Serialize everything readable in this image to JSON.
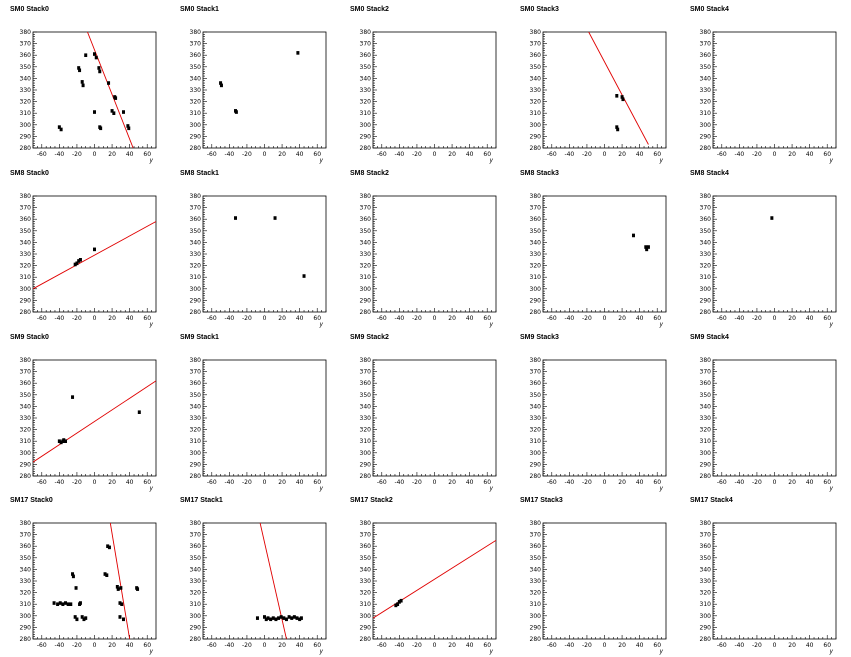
{
  "chart_data": [
    {
      "title": "SM0 Stack0",
      "type": "scatter",
      "xlabel": "y",
      "ylabel": "",
      "xlim": [
        -70,
        70
      ],
      "ylim": [
        280,
        380
      ],
      "xticks": [
        -60,
        -40,
        -20,
        0,
        20,
        40,
        60
      ],
      "yticks": [
        280,
        290,
        300,
        310,
        320,
        330,
        340,
        350,
        360,
        370,
        380
      ],
      "points": [
        [
          -40,
          298
        ],
        [
          -38,
          296
        ],
        [
          -18,
          349
        ],
        [
          -17,
          347
        ],
        [
          -14,
          337
        ],
        [
          -13,
          334
        ],
        [
          -10,
          360
        ],
        [
          0,
          361
        ],
        [
          2,
          358
        ],
        [
          5,
          349
        ],
        [
          6,
          346
        ],
        [
          0,
          311
        ],
        [
          6,
          298
        ],
        [
          7,
          297
        ],
        [
          16,
          336
        ],
        [
          20,
          312
        ],
        [
          22,
          310
        ],
        [
          23,
          324
        ],
        [
          24,
          323
        ],
        [
          33,
          311
        ],
        [
          38,
          299
        ],
        [
          39,
          297
        ]
      ],
      "fit": [
        [
          -8,
          380
        ],
        [
          44,
          280
        ]
      ]
    },
    {
      "title": "SM0 Stack1",
      "type": "scatter",
      "xlabel": "y",
      "ylabel": "",
      "xlim": [
        -70,
        70
      ],
      "ylim": [
        280,
        380
      ],
      "xticks": [
        -60,
        -40,
        -20,
        0,
        20,
        40,
        60
      ],
      "yticks": [
        280,
        290,
        300,
        310,
        320,
        330,
        340,
        350,
        360,
        370,
        380
      ],
      "points": [
        [
          -50,
          336
        ],
        [
          -49,
          334
        ],
        [
          -33,
          312
        ],
        [
          -32,
          311
        ],
        [
          38,
          362
        ]
      ],
      "fit": null
    },
    {
      "title": "SM0 Stack2",
      "type": "scatter",
      "xlabel": "y",
      "ylabel": "",
      "xlim": [
        -70,
        70
      ],
      "ylim": [
        280,
        380
      ],
      "xticks": [
        -60,
        -40,
        -20,
        0,
        20,
        40,
        60
      ],
      "yticks": [
        280,
        290,
        300,
        310,
        320,
        330,
        340,
        350,
        360,
        370,
        380
      ],
      "points": [],
      "fit": null
    },
    {
      "title": "SM0 Stack3",
      "type": "scatter",
      "xlabel": "y",
      "ylabel": "",
      "xlim": [
        -70,
        70
      ],
      "ylim": [
        280,
        380
      ],
      "xticks": [
        -60,
        -40,
        -20,
        0,
        20,
        40,
        60
      ],
      "yticks": [
        280,
        290,
        300,
        310,
        320,
        330,
        340,
        350,
        360,
        370,
        380
      ],
      "points": [
        [
          14,
          325
        ],
        [
          14,
          298
        ],
        [
          15,
          296
        ],
        [
          20,
          324
        ],
        [
          21,
          322
        ]
      ],
      "fit": [
        [
          -18,
          380
        ],
        [
          50,
          283
        ]
      ]
    },
    {
      "title": "SM0 Stack4",
      "type": "scatter",
      "xlabel": "y",
      "ylabel": "",
      "xlim": [
        -70,
        70
      ],
      "ylim": [
        280,
        380
      ],
      "xticks": [
        -60,
        -40,
        -20,
        0,
        20,
        40,
        60
      ],
      "yticks": [
        280,
        290,
        300,
        310,
        320,
        330,
        340,
        350,
        360,
        370,
        380
      ],
      "points": [],
      "fit": null
    },
    {
      "title": "SM8 Stack0",
      "type": "scatter",
      "xlabel": "y",
      "ylabel": "",
      "xlim": [
        -70,
        70
      ],
      "ylim": [
        280,
        380
      ],
      "xticks": [
        -60,
        -40,
        -20,
        0,
        20,
        40,
        60
      ],
      "yticks": [
        280,
        290,
        300,
        310,
        320,
        330,
        340,
        350,
        360,
        370,
        380
      ],
      "points": [
        [
          -22,
          321
        ],
        [
          -20,
          322
        ],
        [
          -18,
          324
        ],
        [
          -16,
          325
        ],
        [
          0,
          334
        ]
      ],
      "fit": [
        [
          -70,
          300
        ],
        [
          70,
          358
        ]
      ]
    },
    {
      "title": "SM8 Stack1",
      "type": "scatter",
      "xlabel": "y",
      "ylabel": "",
      "xlim": [
        -70,
        70
      ],
      "ylim": [
        280,
        380
      ],
      "xticks": [
        -60,
        -40,
        -20,
        0,
        20,
        40,
        60
      ],
      "yticks": [
        280,
        290,
        300,
        310,
        320,
        330,
        340,
        350,
        360,
        370,
        380
      ],
      "points": [
        [
          -33,
          361
        ],
        [
          12,
          361
        ],
        [
          45,
          311
        ]
      ],
      "fit": null
    },
    {
      "title": "SM8 Stack2",
      "type": "scatter",
      "xlabel": "y",
      "ylabel": "",
      "xlim": [
        -70,
        70
      ],
      "ylim": [
        280,
        380
      ],
      "xticks": [
        -60,
        -40,
        -20,
        0,
        20,
        40,
        60
      ],
      "yticks": [
        280,
        290,
        300,
        310,
        320,
        330,
        340,
        350,
        360,
        370,
        380
      ],
      "points": [],
      "fit": null
    },
    {
      "title": "SM8 Stack3",
      "type": "scatter",
      "xlabel": "y",
      "ylabel": "",
      "xlim": [
        -70,
        70
      ],
      "ylim": [
        280,
        380
      ],
      "xticks": [
        -60,
        -40,
        -20,
        0,
        20,
        40,
        60
      ],
      "yticks": [
        280,
        290,
        300,
        310,
        320,
        330,
        340,
        350,
        360,
        370,
        380
      ],
      "points": [
        [
          33,
          346
        ],
        [
          47,
          336
        ],
        [
          48,
          334
        ],
        [
          50,
          336
        ]
      ],
      "fit": null
    },
    {
      "title": "SM8 Stack4",
      "type": "scatter",
      "xlabel": "y",
      "ylabel": "",
      "xlim": [
        -70,
        70
      ],
      "ylim": [
        280,
        380
      ],
      "xticks": [
        -60,
        -40,
        -20,
        0,
        20,
        40,
        60
      ],
      "yticks": [
        280,
        290,
        300,
        310,
        320,
        330,
        340,
        350,
        360,
        370,
        380
      ],
      "points": [
        [
          -3,
          361
        ]
      ],
      "fit": null
    },
    {
      "title": "SM9 Stack0",
      "type": "scatter",
      "xlabel": "y",
      "ylabel": "",
      "xlim": [
        -70,
        70
      ],
      "ylim": [
        280,
        380
      ],
      "xticks": [
        -60,
        -40,
        -20,
        0,
        20,
        40,
        60
      ],
      "yticks": [
        280,
        290,
        300,
        310,
        320,
        330,
        340,
        350,
        360,
        370,
        380
      ],
      "points": [
        [
          -40,
          310
        ],
        [
          -38,
          309
        ],
        [
          -36,
          310
        ],
        [
          -35,
          311
        ],
        [
          -33,
          310
        ],
        [
          -25,
          348
        ],
        [
          51,
          335
        ]
      ],
      "fit": [
        [
          -70,
          292
        ],
        [
          70,
          362
        ]
      ]
    },
    {
      "title": "SM9 Stack1",
      "type": "scatter",
      "xlabel": "y",
      "ylabel": "",
      "xlim": [
        -70,
        70
      ],
      "ylim": [
        280,
        380
      ],
      "xticks": [
        -60,
        -40,
        -20,
        0,
        20,
        40,
        60
      ],
      "yticks": [
        280,
        290,
        300,
        310,
        320,
        330,
        340,
        350,
        360,
        370,
        380
      ],
      "points": [],
      "fit": null
    },
    {
      "title": "SM9 Stack2",
      "type": "scatter",
      "xlabel": "y",
      "ylabel": "",
      "xlim": [
        -70,
        70
      ],
      "ylim": [
        280,
        380
      ],
      "xticks": [
        -60,
        -40,
        -20,
        0,
        20,
        40,
        60
      ],
      "yticks": [
        280,
        290,
        300,
        310,
        320,
        330,
        340,
        350,
        360,
        370,
        380
      ],
      "points": [],
      "fit": null
    },
    {
      "title": "SM9 Stack3",
      "type": "scatter",
      "xlabel": "y",
      "ylabel": "",
      "xlim": [
        -70,
        70
      ],
      "ylim": [
        280,
        380
      ],
      "xticks": [
        -60,
        -40,
        -20,
        0,
        20,
        40,
        60
      ],
      "yticks": [
        280,
        290,
        300,
        310,
        320,
        330,
        340,
        350,
        360,
        370,
        380
      ],
      "points": [],
      "fit": null
    },
    {
      "title": "SM9 Stack4",
      "type": "scatter",
      "xlabel": "y",
      "ylabel": "",
      "xlim": [
        -70,
        70
      ],
      "ylim": [
        280,
        380
      ],
      "xticks": [
        -60,
        -40,
        -20,
        0,
        20,
        40,
        60
      ],
      "yticks": [
        280,
        290,
        300,
        310,
        320,
        330,
        340,
        350,
        360,
        370,
        380
      ],
      "points": [],
      "fit": null
    },
    {
      "title": "SM17 Stack0",
      "type": "scatter",
      "xlabel": "y",
      "ylabel": "",
      "xlim": [
        -70,
        70
      ],
      "ylim": [
        280,
        380
      ],
      "xticks": [
        -60,
        -40,
        -20,
        0,
        20,
        40,
        60
      ],
      "yticks": [
        280,
        290,
        300,
        310,
        320,
        330,
        340,
        350,
        360,
        370,
        380
      ],
      "points": [
        [
          -46,
          311
        ],
        [
          -42,
          310
        ],
        [
          -39,
          311
        ],
        [
          -36,
          310
        ],
        [
          -33,
          311
        ],
        [
          -30,
          310
        ],
        [
          -27,
          310
        ],
        [
          -25,
          336
        ],
        [
          -24,
          334
        ],
        [
          -22,
          299
        ],
        [
          -21,
          324
        ],
        [
          -20,
          297
        ],
        [
          -17,
          310
        ],
        [
          -16,
          311
        ],
        [
          -14,
          299
        ],
        [
          -12,
          297
        ],
        [
          -10,
          298
        ],
        [
          12,
          336
        ],
        [
          14,
          335
        ],
        [
          15,
          360
        ],
        [
          17,
          359
        ],
        [
          26,
          325
        ],
        [
          27,
          323
        ],
        [
          29,
          311
        ],
        [
          30,
          324
        ],
        [
          31,
          310
        ],
        [
          29,
          299
        ],
        [
          33,
          297
        ],
        [
          48,
          324
        ],
        [
          49,
          323
        ]
      ],
      "fit": [
        [
          18,
          380
        ],
        [
          40,
          280
        ]
      ]
    },
    {
      "title": "SM17 Stack1",
      "type": "scatter",
      "xlabel": "y",
      "ylabel": "",
      "xlim": [
        -70,
        70
      ],
      "ylim": [
        280,
        380
      ],
      "xticks": [
        -60,
        -40,
        -20,
        0,
        20,
        40,
        60
      ],
      "yticks": [
        280,
        290,
        300,
        310,
        320,
        330,
        340,
        350,
        360,
        370,
        380
      ],
      "points": [
        [
          -8,
          298
        ],
        [
          0,
          299
        ],
        [
          2,
          297
        ],
        [
          4,
          298
        ],
        [
          7,
          297
        ],
        [
          10,
          298
        ],
        [
          13,
          297
        ],
        [
          16,
          298
        ],
        [
          19,
          299
        ],
        [
          22,
          298
        ],
        [
          25,
          297
        ],
        [
          28,
          299
        ],
        [
          31,
          298
        ],
        [
          34,
          299
        ],
        [
          37,
          298
        ],
        [
          40,
          297
        ],
        [
          42,
          298
        ]
      ],
      "fit": [
        [
          -5,
          380
        ],
        [
          25,
          280
        ]
      ]
    },
    {
      "title": "SM17 Stack2",
      "type": "scatter",
      "xlabel": "y",
      "ylabel": "",
      "xlim": [
        -70,
        70
      ],
      "ylim": [
        280,
        380
      ],
      "xticks": [
        -60,
        -40,
        -20,
        0,
        20,
        40,
        60
      ],
      "yticks": [
        280,
        290,
        300,
        310,
        320,
        330,
        340,
        350,
        360,
        370,
        380
      ],
      "points": [
        [
          -44,
          309
        ],
        [
          -42,
          310
        ],
        [
          -40,
          312
        ],
        [
          -38,
          313
        ]
      ],
      "fit": [
        [
          -70,
          298
        ],
        [
          70,
          365
        ]
      ]
    },
    {
      "title": "SM17 Stack3",
      "type": "scatter",
      "xlabel": "y",
      "ylabel": "",
      "xlim": [
        -70,
        70
      ],
      "ylim": [
        280,
        380
      ],
      "xticks": [
        -60,
        -40,
        -20,
        0,
        20,
        40,
        60
      ],
      "yticks": [
        280,
        290,
        300,
        310,
        320,
        330,
        340,
        350,
        360,
        370,
        380
      ],
      "points": [],
      "fit": null
    },
    {
      "title": "SM17 Stack4",
      "type": "scatter",
      "xlabel": "y",
      "ylabel": "",
      "xlim": [
        -70,
        70
      ],
      "ylim": [
        280,
        380
      ],
      "xticks": [
        -60,
        -40,
        -20,
        0,
        20,
        40,
        60
      ],
      "yticks": [
        280,
        290,
        300,
        310,
        320,
        330,
        340,
        350,
        360,
        370,
        380
      ],
      "points": [],
      "fit": null
    }
  ],
  "colors": {
    "points": "#000000",
    "fit": "#e00000",
    "axis": "#000000",
    "background": "#ffffff"
  }
}
